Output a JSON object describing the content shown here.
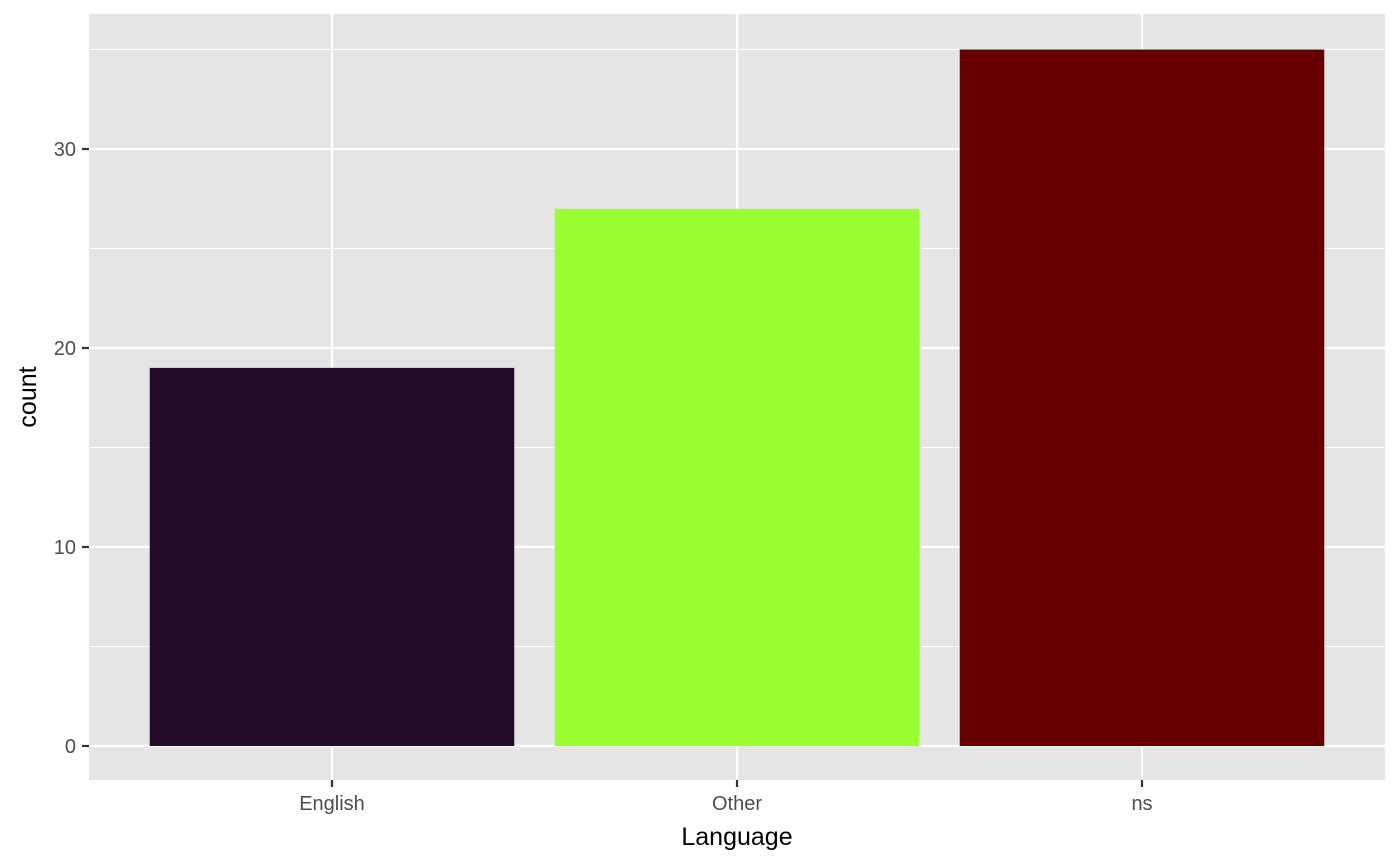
{
  "chart_data": {
    "type": "bar",
    "title": "",
    "xlabel": "Language",
    "ylabel": "count",
    "categories": [
      "English",
      "Other",
      "ns"
    ],
    "values": [
      19,
      27,
      35
    ],
    "ylim": [
      0,
      36.7
    ],
    "y_ticks": [
      0,
      10,
      20,
      30
    ],
    "y_tick_labels": [
      "0",
      "10",
      "20",
      "30"
    ],
    "y_minor_ticks": [
      5,
      15,
      25,
      35
    ],
    "grid": true,
    "legend": "none",
    "colors": {
      "panel_background": "#e5e5e5",
      "grid": "#ffffff",
      "bars": [
        "#230c2b",
        "#99ff33",
        "#660000"
      ]
    }
  }
}
